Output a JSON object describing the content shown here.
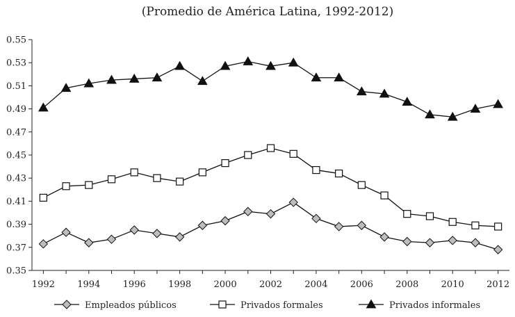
{
  "chart_data": {
    "type": "line",
    "subtitle": "(Promedio de América Latina, 1992-2012)",
    "x": [
      1992,
      1993,
      1994,
      1995,
      1996,
      1997,
      1998,
      1999,
      2000,
      2001,
      2002,
      2003,
      2004,
      2005,
      2006,
      2007,
      2008,
      2009,
      2010,
      2011,
      2012
    ],
    "x_tick_labels": [
      "1992",
      "1994",
      "1996",
      "1998",
      "2000",
      "2002",
      "2004",
      "2006",
      "2008",
      "2010",
      "2012"
    ],
    "y_tick_labels": [
      "0.35",
      "0.37",
      "0.39",
      "0.41",
      "0.43",
      "0.45",
      "0.47",
      "0.49",
      "0.51",
      "0.53",
      "0.55"
    ],
    "xlim": [
      1991.5,
      2012.5
    ],
    "ylim": [
      0.35,
      0.55
    ],
    "grid": false,
    "legend_position": "bottom",
    "series": [
      {
        "name": "Empleados públicos",
        "marker": "diamond",
        "values": [
          0.373,
          0.383,
          0.374,
          0.377,
          0.385,
          0.382,
          0.379,
          0.389,
          0.393,
          0.401,
          0.399,
          0.409,
          0.395,
          0.388,
          0.389,
          0.379,
          0.375,
          0.374,
          0.376,
          0.374,
          0.368
        ]
      },
      {
        "name": "Privados formales",
        "marker": "square",
        "values": [
          0.413,
          0.423,
          0.424,
          0.429,
          0.435,
          0.43,
          0.427,
          0.435,
          0.443,
          0.45,
          0.456,
          0.451,
          0.437,
          0.434,
          0.424,
          0.415,
          0.399,
          0.397,
          0.392,
          0.389,
          0.388
        ]
      },
      {
        "name": "Privados informales",
        "marker": "triangle",
        "values": [
          0.491,
          0.508,
          0.512,
          0.515,
          0.516,
          0.517,
          0.527,
          0.514,
          0.527,
          0.531,
          0.527,
          0.53,
          0.517,
          0.517,
          0.505,
          0.503,
          0.496,
          0.485,
          0.483,
          0.49,
          0.494
        ]
      }
    ],
    "colors": {
      "line": "#111111",
      "diamond_fill": "#bdbdbd",
      "square_fill": "#ffffff",
      "triangle_fill": "#111111"
    }
  }
}
